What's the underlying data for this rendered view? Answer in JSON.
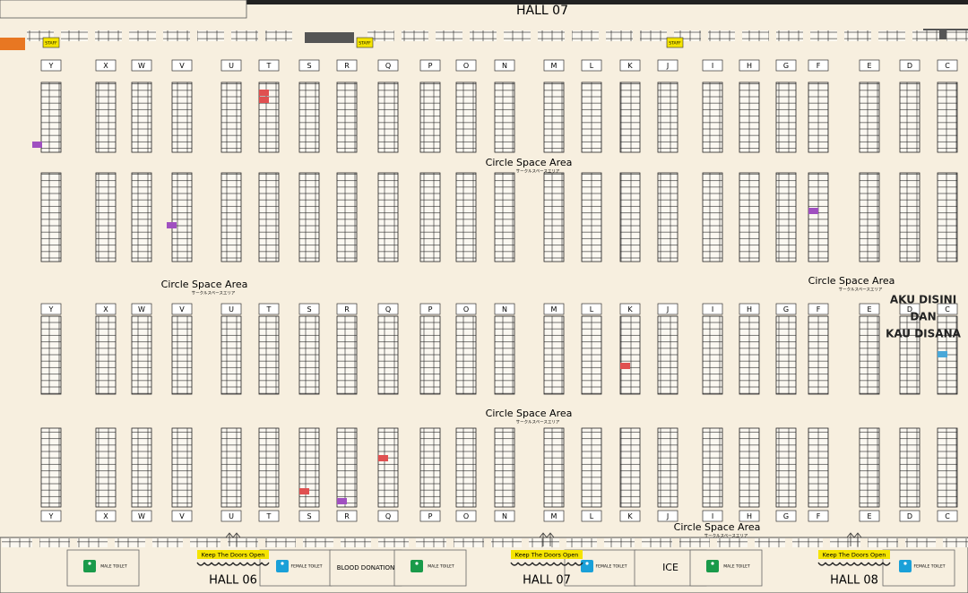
{
  "header": {
    "title": "HALL 07"
  },
  "columns": [
    "Y",
    "X",
    "W",
    "V",
    "U",
    "T",
    "S",
    "R",
    "Q",
    "P",
    "O",
    "N",
    "M",
    "L",
    "K",
    "J",
    "I",
    "H",
    "G",
    "F",
    "E",
    "D",
    "C"
  ],
  "staff": [
    "STAFF",
    "STAFF",
    "STAFF"
  ],
  "circle_space": [
    {
      "title": "Circle Space Area",
      "subtitle": "サークルスペースエリア"
    },
    {
      "title": "Circle Space Area",
      "subtitle": "サークルスペースエリア"
    },
    {
      "title": "Circle Space Area",
      "subtitle": "サークルスペースエリア"
    },
    {
      "title": "Circle Space Area",
      "subtitle": "サークルスペースエリア"
    },
    {
      "title": "Circle Space Area",
      "subtitle": "サークルスペースエリア"
    }
  ],
  "note": {
    "lines": [
      "AKU DISINI",
      "DAN",
      "KAU DISANA"
    ]
  },
  "facilities": [
    "MALE TOILET",
    "FEMALE TOILET",
    "BLOOD DONATION",
    "MALE TOILET",
    "FEMALE TOILET",
    "ICE",
    "MALE TOILET",
    "FEMALE TOILET"
  ],
  "doors": [
    {
      "sign": "Keep The Doors Open",
      "hall": "HALL 06"
    },
    {
      "sign": "Keep The Doors Open",
      "hall": "HALL 07"
    },
    {
      "sign": "Keep The Doors Open",
      "hall": "HALL 08"
    }
  ]
}
